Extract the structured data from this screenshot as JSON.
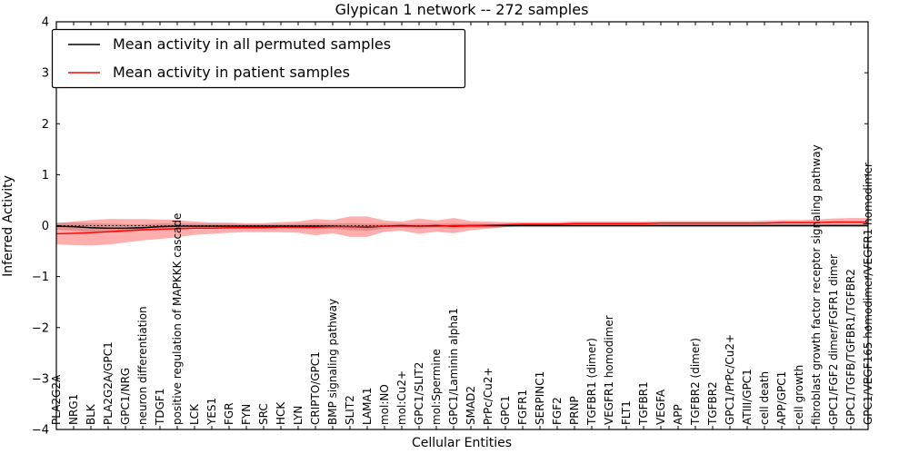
{
  "chart_data": {
    "type": "line",
    "title": "Glypican 1 network -- 272 samples",
    "xlabel": "Cellular Entities",
    "ylabel": "Inferred Activity",
    "ylim": [
      -4,
      4
    ],
    "ytick_values": [
      4,
      3,
      2,
      1,
      0,
      -1,
      -2,
      -3,
      -4
    ],
    "ytick_labels": [
      "4",
      "3",
      "2",
      "1",
      "0",
      "−1",
      "−2",
      "−3",
      "−4"
    ],
    "grid": false,
    "zero_line": true,
    "legend_position": "upper left",
    "categories": [
      "PLA2G2A",
      "NRG1",
      "BLK",
      "PLA2G2A/GPC1",
      "GPC1/NRG",
      "neuron differentiation",
      "TDGF1",
      "positive regulation of MAPKKK cascade",
      "LCK",
      "YES1",
      "FGR",
      "FYN",
      "SRC",
      "HCK",
      "LYN",
      "CRIPTO/GPC1",
      "BMP signaling pathway",
      "SLIT2",
      "LAMA1",
      "mol:NO",
      "mol:Cu2+",
      "GPC1/SLIT2",
      "mol:Spermine",
      "GPC1/Laminin alpha1",
      "SMAD2",
      "PrPc/Cu2+",
      "GPC1",
      "FGFR1",
      "SERPINC1",
      "FGF2",
      "PRNP",
      "TGFBR1 (dimer)",
      "VEGFR1 homodimer",
      "FLT1",
      "TGFBR1",
      "VEGFA",
      "APP",
      "TGFBR2 (dimer)",
      "TGFBR2",
      "GPC1/PrPc/Cu2+",
      "ATIII/GPC1",
      "cell death",
      "APP/GPC1",
      "cell growth",
      "fibroblast growth factor receptor signaling pathway",
      "GPC1/FGF2 dimer/FGFR1 dimer",
      "GPC1/TGFB/TGFBR1/TGFBR2",
      "GPC1/VEGF165 homodimer/VEGFR1 homodimer"
    ],
    "series": [
      {
        "name": "Mean activity in all permuted samples",
        "color": "#000000",
        "band_color": "rgba(130,130,130,0.35)",
        "values": [
          -0.01,
          -0.02,
          -0.04,
          -0.05,
          -0.05,
          -0.04,
          -0.02,
          -0.01,
          -0.01,
          -0.01,
          -0.01,
          -0.01,
          -0.01,
          -0.01,
          -0.01,
          -0.01,
          -0.01,
          -0.02,
          -0.03,
          -0.01,
          0.0,
          -0.01,
          0.0,
          -0.01,
          0.0,
          0.0,
          0.0,
          0.0,
          0.0,
          0.0,
          0.0,
          0.0,
          0.0,
          0.0,
          0.0,
          0.0,
          0.0,
          0.0,
          0.0,
          0.0,
          0.0,
          0.0,
          0.0,
          0.0,
          0.0,
          0.0,
          0.0,
          0.0
        ],
        "std": [
          0.07,
          0.08,
          0.09,
          0.09,
          0.08,
          0.07,
          0.07,
          0.06,
          0.05,
          0.05,
          0.05,
          0.04,
          0.04,
          0.04,
          0.05,
          0.06,
          0.05,
          0.07,
          0.07,
          0.05,
          0.04,
          0.05,
          0.04,
          0.05,
          0.04,
          0.04,
          0.03,
          0.03,
          0.03,
          0.03,
          0.03,
          0.03,
          0.03,
          0.03,
          0.03,
          0.03,
          0.03,
          0.03,
          0.03,
          0.03,
          0.03,
          0.03,
          0.03,
          0.03,
          0.03,
          0.03,
          0.03,
          0.03
        ]
      },
      {
        "name": "Mean activity in patient samples",
        "color": "#ff0000",
        "band_color": "rgba(255,0,0,0.32)",
        "values": [
          -0.16,
          -0.15,
          -0.14,
          -0.12,
          -0.1,
          -0.08,
          -0.07,
          -0.06,
          -0.05,
          -0.05,
          -0.04,
          -0.04,
          -0.04,
          -0.03,
          -0.03,
          -0.03,
          -0.02,
          -0.02,
          -0.02,
          -0.01,
          -0.01,
          -0.01,
          -0.01,
          0.0,
          0.0,
          0.01,
          0.02,
          0.03,
          0.03,
          0.03,
          0.04,
          0.04,
          0.04,
          0.04,
          0.04,
          0.05,
          0.05,
          0.05,
          0.05,
          0.05,
          0.05,
          0.05,
          0.06,
          0.06,
          0.06,
          0.07,
          0.07,
          0.07
        ],
        "std": [
          0.21,
          0.23,
          0.25,
          0.25,
          0.23,
          0.21,
          0.19,
          0.17,
          0.13,
          0.11,
          0.1,
          0.09,
          0.09,
          0.1,
          0.11,
          0.16,
          0.13,
          0.2,
          0.2,
          0.11,
          0.09,
          0.15,
          0.11,
          0.15,
          0.09,
          0.07,
          0.05,
          0.04,
          0.04,
          0.04,
          0.04,
          0.04,
          0.04,
          0.04,
          0.04,
          0.04,
          0.04,
          0.04,
          0.04,
          0.04,
          0.04,
          0.05,
          0.05,
          0.05,
          0.06,
          0.07,
          0.08,
          0.08
        ]
      }
    ]
  }
}
